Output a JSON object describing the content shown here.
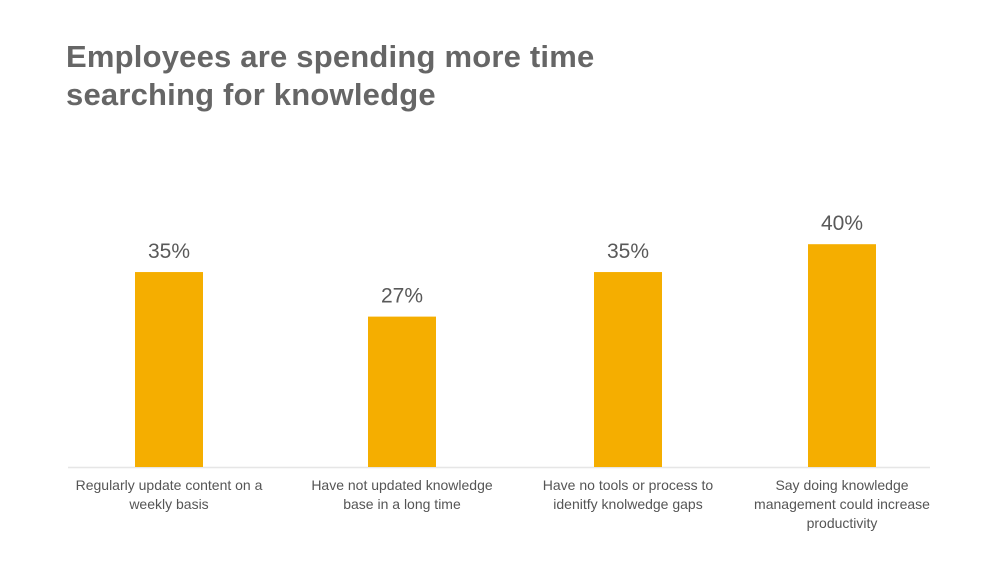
{
  "chart_data": {
    "type": "bar",
    "title": "Employees are spending more time searching for knowledge",
    "categories": [
      [
        "Regularly update content on a",
        "weekly basis"
      ],
      [
        "Have not updated knowledge",
        "base in a long time"
      ],
      [
        "Have no tools or process to",
        "idenitfy knolwedge gaps"
      ],
      [
        "Say doing knowledge",
        "management could increase",
        "productivity"
      ]
    ],
    "values": [
      35,
      27,
      35,
      40
    ],
    "data_labels": [
      "35%",
      "27%",
      "35%",
      "40%"
    ],
    "xlabel": "",
    "ylabel": "",
    "grid": false,
    "legend": "none",
    "bar_color": "#F5AE00",
    "title_color": "#666666"
  }
}
